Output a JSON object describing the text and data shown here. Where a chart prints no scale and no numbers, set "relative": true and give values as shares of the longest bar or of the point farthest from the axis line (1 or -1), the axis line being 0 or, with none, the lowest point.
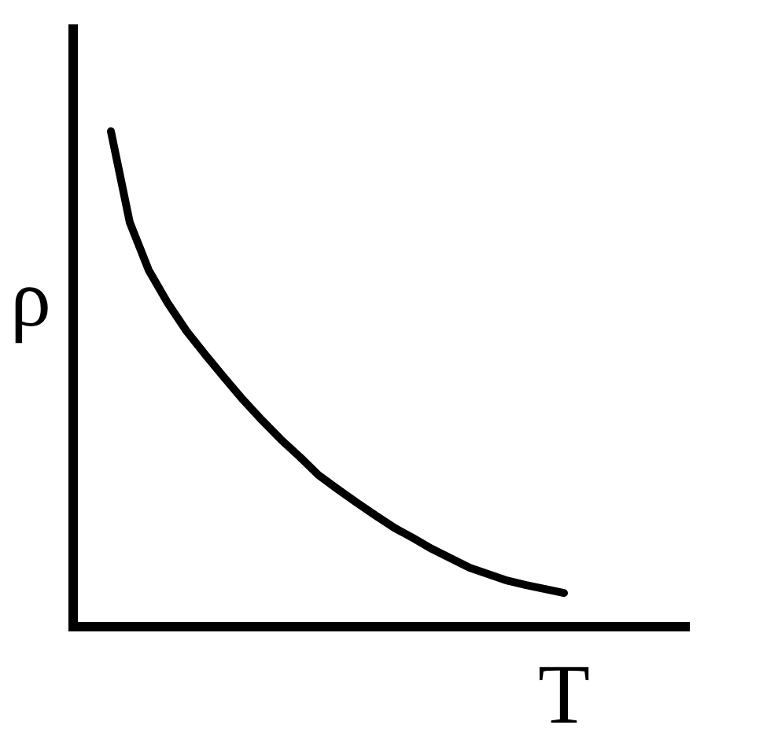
{
  "chart_data": {
    "type": "line",
    "relative": true,
    "xlabel": "T",
    "ylabel": "ρ",
    "categories": [
      null,
      null,
      null,
      null,
      null,
      null,
      null,
      null,
      null,
      null,
      null,
      null,
      null,
      null,
      null,
      null,
      null,
      null,
      null,
      null,
      null,
      null,
      null,
      null,
      null
    ],
    "series": [
      {
        "color": "#000000",
        "values": [
          1.0,
          0.816,
          0.72,
          0.654,
          0.597,
          0.549,
          0.503,
          0.458,
          0.417,
          0.378,
          0.343,
          0.306,
          0.278,
          0.251,
          0.225,
          0.2,
          0.179,
          0.157,
          0.138,
          0.119,
          0.106,
          0.093,
          0.084,
          0.076,
          0.068
        ]
      }
    ]
  }
}
